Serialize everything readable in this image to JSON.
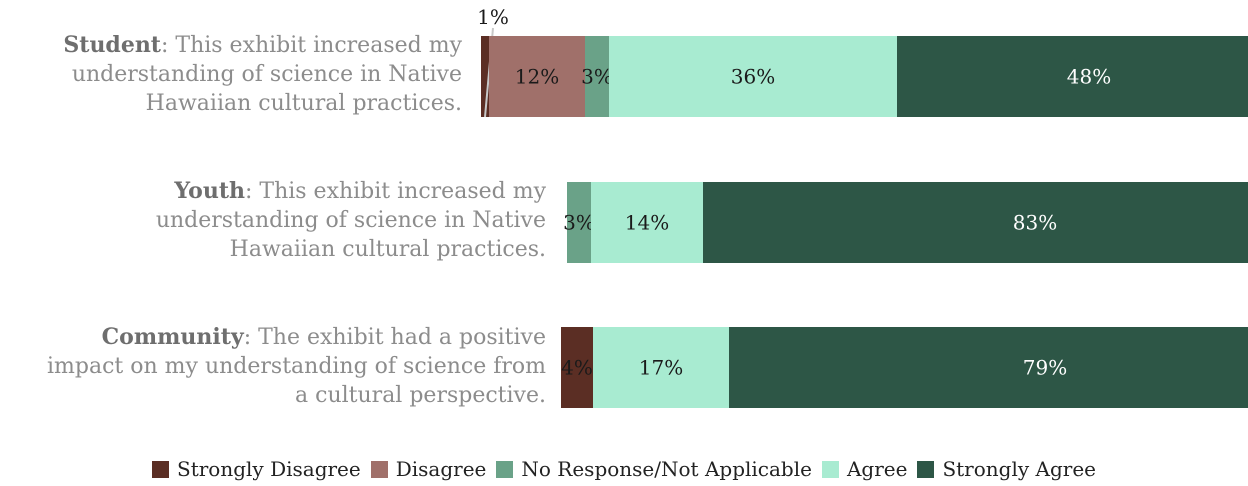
{
  "chart_data": {
    "type": "bar",
    "orientation": "horizontal",
    "stacked": true,
    "xlim": [
      0,
      100
    ],
    "legend_position": "bottom",
    "categories": [
      {
        "bold": "Student",
        "rest": ": This exhibit increased my understanding of science in Native Hawaiian cultural practices."
      },
      {
        "bold": "Youth",
        "rest": ": This exhibit increased my understanding of science in Native Hawaiian cultural practices."
      },
      {
        "bold": "Community",
        "rest": ": The exhibit had a positive impact on my understanding of science from a cultural perspective."
      }
    ],
    "series": [
      {
        "name": "Strongly Disagree",
        "color": "#5b2e24",
        "values": [
          1,
          0,
          4
        ],
        "labels": [
          "1%",
          "",
          "4%"
        ]
      },
      {
        "name": "Disagree",
        "color": "#a0706a",
        "values": [
          12,
          0,
          0
        ],
        "labels": [
          "12%",
          "",
          ""
        ]
      },
      {
        "name": "No Response/Not Applicable",
        "color": "#6aa288",
        "values": [
          3,
          3,
          0
        ],
        "labels": [
          "3%",
          "3%",
          ""
        ]
      },
      {
        "name": "Agree",
        "color": "#a8ebd1",
        "values": [
          36,
          14,
          17
        ],
        "labels": [
          "36%",
          "14%",
          "17%"
        ]
      },
      {
        "name": "Strongly Agree",
        "color": "#2d5646",
        "values": [
          48,
          83,
          79
        ],
        "labels": [
          "48%",
          "83%",
          "79%"
        ]
      }
    ]
  }
}
